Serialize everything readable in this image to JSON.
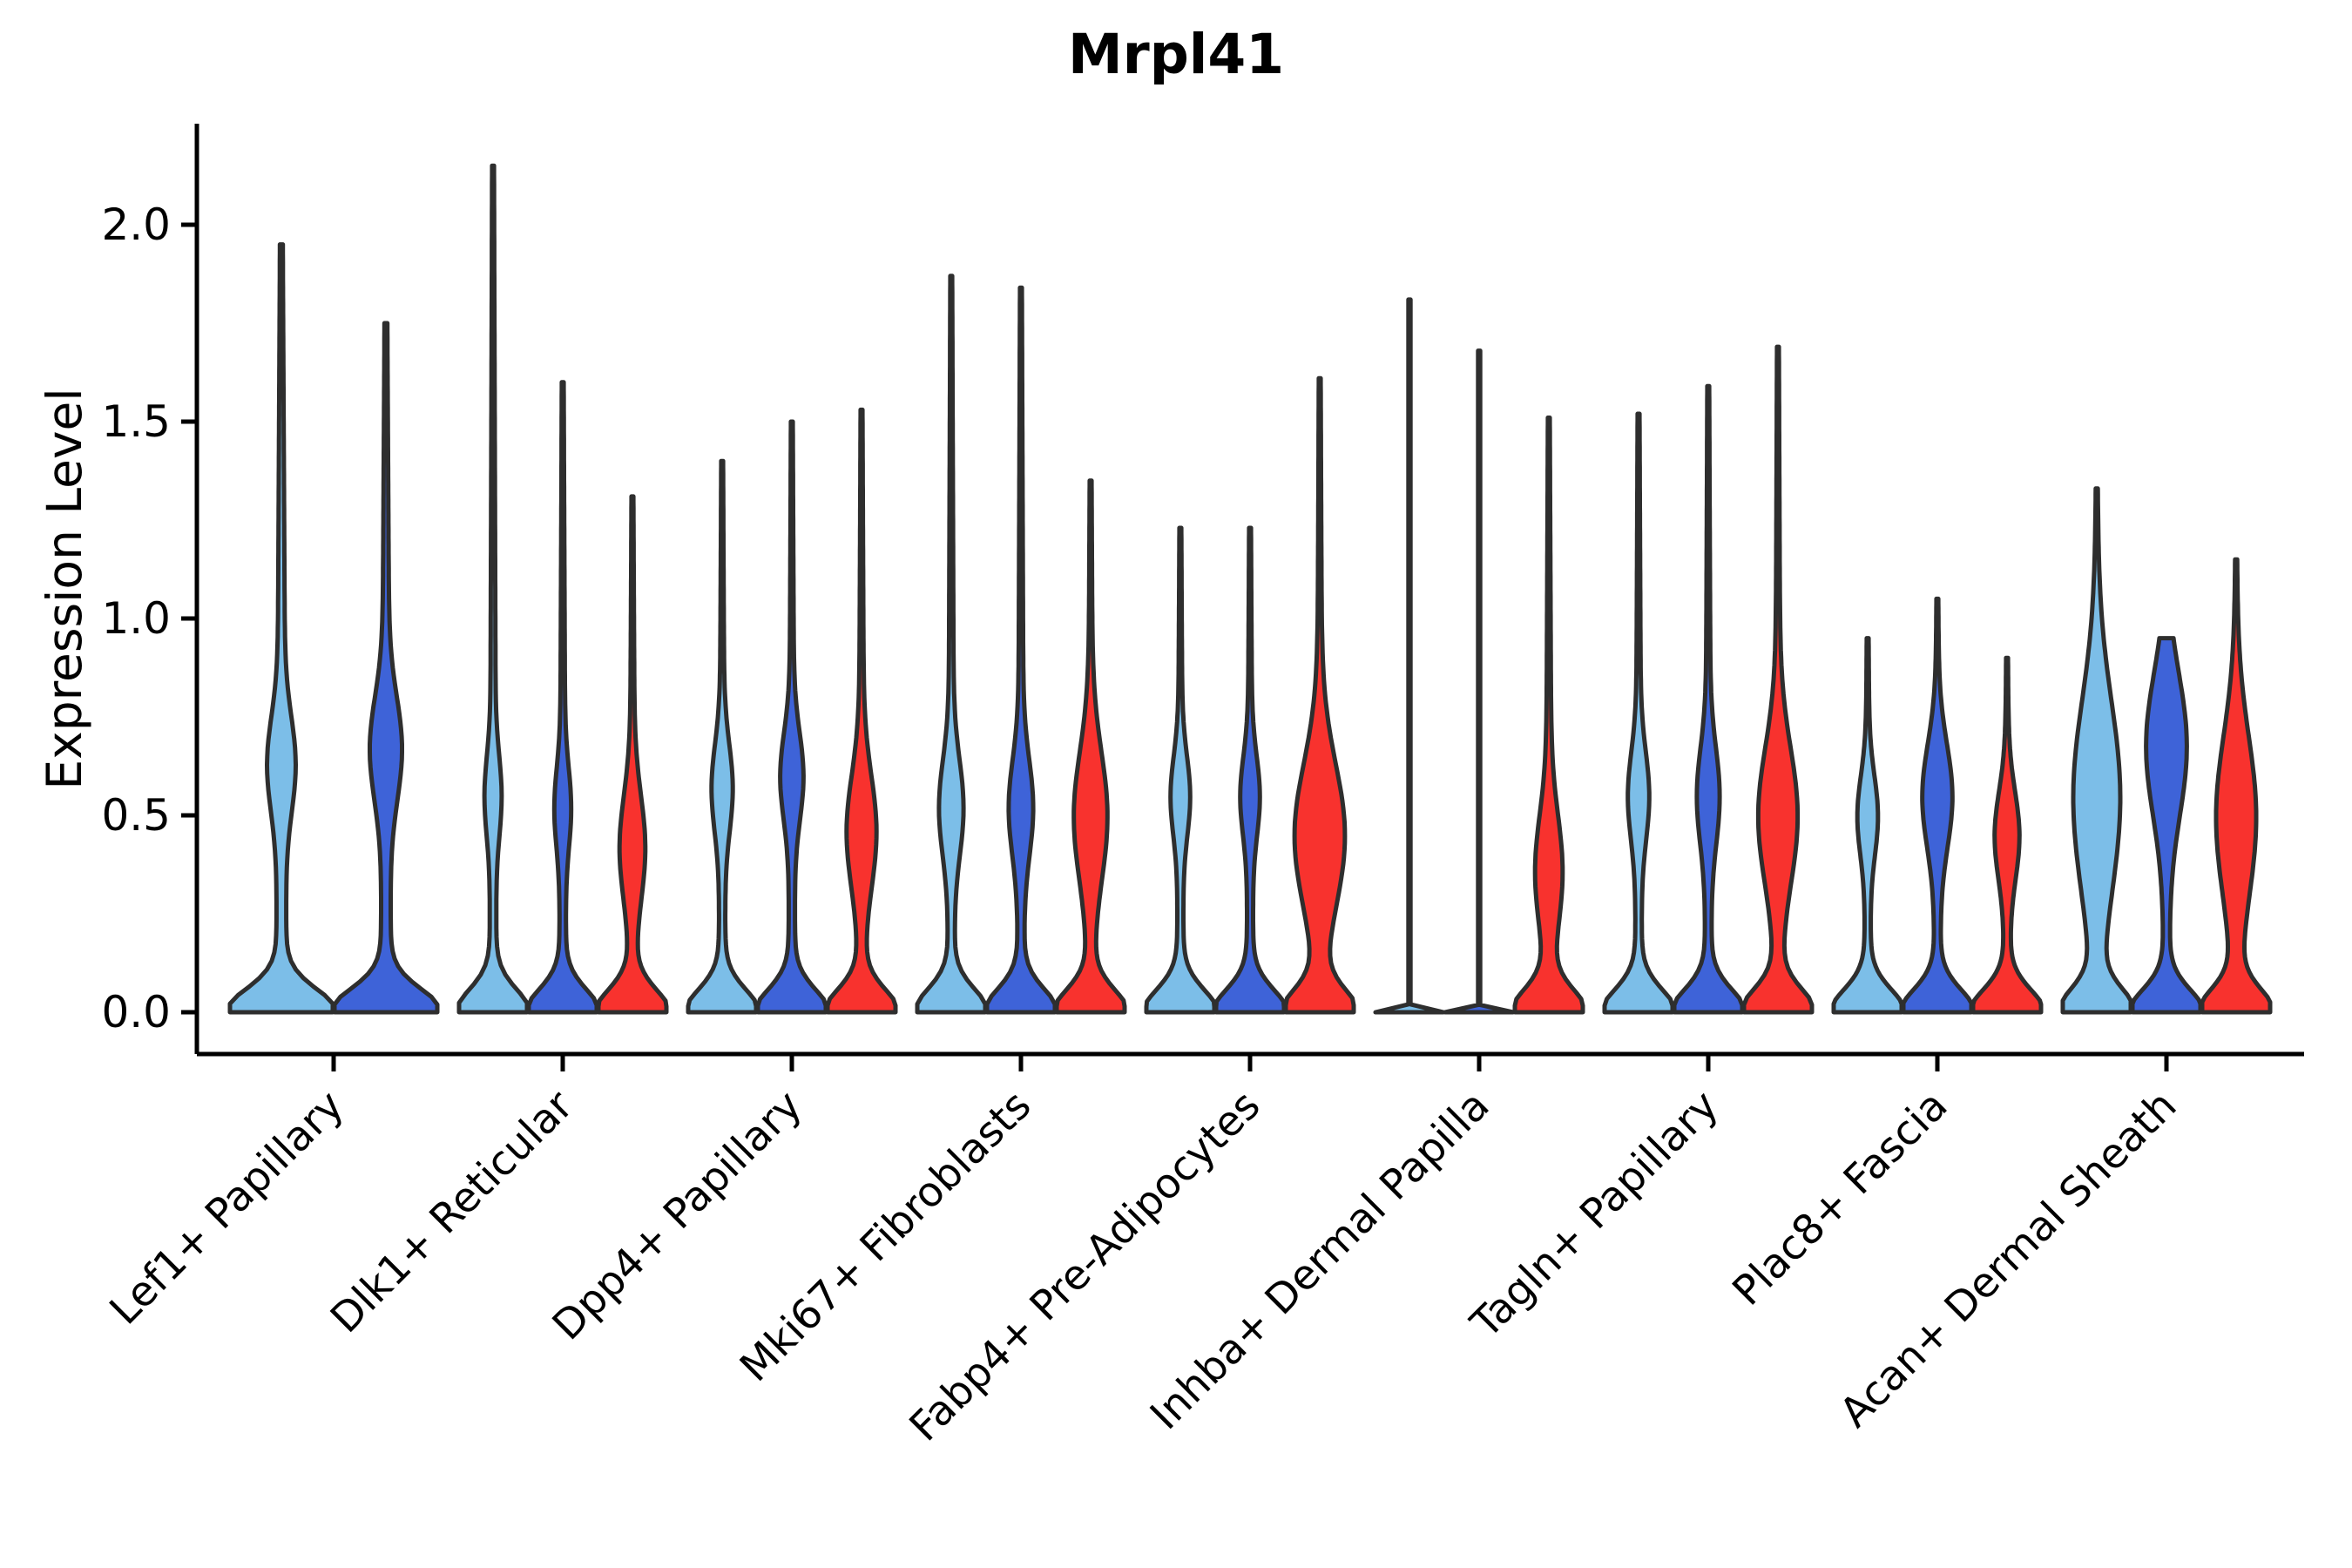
{
  "chart_data": {
    "type": "violin",
    "title": "Mrpl41",
    "ylabel": "Expression Level",
    "xlabel": "",
    "ylim": [
      -0.11,
      2.26
    ],
    "yticks": [
      0.0,
      0.5,
      1.0,
      1.5,
      2.0
    ],
    "ytick_labels": [
      "0.0",
      "0.5",
      "1.0",
      "1.5",
      "2.0"
    ],
    "grid": false,
    "legend": "none",
    "categories": [
      "Lef1+ Papillary",
      "Dlk1+ Reticular",
      "Dpp4+ Papillary",
      "Mki67+ Fibroblasts",
      "Fabp4+ Pre-Adipocytes",
      "Inhba+ Dermal Papilla",
      "Tagln+ Papillary",
      "Plac8+ Fascia",
      "Acan+ Dermal Sheath"
    ],
    "split_colors": {
      "light_blue": "#7CBEE8",
      "dark_blue": "#3E63D8",
      "red": "#F8322E"
    },
    "edge_color": "#2E2E2E",
    "axis_color": "#000000",
    "groups": [
      {
        "category": "Lef1+ Papillary",
        "violins": [
          {
            "split": "light_blue",
            "shape": "kde",
            "max": 1.95,
            "bump_center": 0.63,
            "bump_width": 0.12,
            "bump_amp": 0.2
          },
          {
            "split": "dark_blue",
            "shape": "kde",
            "max": 1.75,
            "bump_center": 0.67,
            "bump_width": 0.13,
            "bump_amp": 0.24
          }
        ]
      },
      {
        "category": "Dlk1+ Reticular",
        "violins": [
          {
            "split": "light_blue",
            "shape": "kde",
            "max": 2.15,
            "bump_center": 0.55,
            "bump_width": 0.1,
            "bump_amp": 0.17
          },
          {
            "split": "dark_blue",
            "shape": "kde",
            "max": 1.6,
            "bump_center": 0.52,
            "bump_width": 0.1,
            "bump_amp": 0.17
          },
          {
            "split": "red",
            "shape": "kde",
            "max": 1.31,
            "bump_center": 0.42,
            "bump_width": 0.13,
            "bump_amp": 0.3
          }
        ]
      },
      {
        "category": "Dpp4+ Papillary",
        "violins": [
          {
            "split": "light_blue",
            "shape": "kde",
            "max": 1.4,
            "bump_center": 0.57,
            "bump_width": 0.11,
            "bump_amp": 0.24
          },
          {
            "split": "dark_blue",
            "shape": "kde",
            "max": 1.5,
            "bump_center": 0.6,
            "bump_width": 0.11,
            "bump_amp": 0.27
          },
          {
            "split": "red",
            "shape": "kde",
            "max": 1.53,
            "bump_center": 0.46,
            "bump_width": 0.14,
            "bump_amp": 0.36
          }
        ]
      },
      {
        "category": "Mki67+ Fibroblasts",
        "violins": [
          {
            "split": "light_blue",
            "shape": "kde",
            "max": 1.87,
            "bump_center": 0.52,
            "bump_width": 0.12,
            "bump_amp": 0.28
          },
          {
            "split": "dark_blue",
            "shape": "kde",
            "max": 1.84,
            "bump_center": 0.52,
            "bump_width": 0.12,
            "bump_amp": 0.28
          },
          {
            "split": "red",
            "shape": "kde",
            "max": 1.35,
            "bump_center": 0.5,
            "bump_width": 0.16,
            "bump_amp": 0.42
          }
        ]
      },
      {
        "category": "Fabp4+ Pre-Adipocytes",
        "violins": [
          {
            "split": "light_blue",
            "shape": "kde",
            "max": 1.23,
            "bump_center": 0.55,
            "bump_width": 0.1,
            "bump_amp": 0.22
          },
          {
            "split": "dark_blue",
            "shape": "kde",
            "max": 1.23,
            "bump_center": 0.55,
            "bump_width": 0.1,
            "bump_amp": 0.22
          },
          {
            "split": "red",
            "shape": "kde",
            "max": 1.61,
            "bump_center": 0.45,
            "bump_width": 0.18,
            "bump_amp": 0.66
          }
        ]
      },
      {
        "category": "Inhba+ Dermal Papilla",
        "violins": [
          {
            "split": "light_blue",
            "shape": "line",
            "max": 1.81
          },
          {
            "split": "dark_blue",
            "shape": "line",
            "max": 1.68
          },
          {
            "split": "red",
            "shape": "kde",
            "max": 1.51,
            "bump_center": 0.36,
            "bump_width": 0.14,
            "bump_amp": 0.32
          }
        ]
      },
      {
        "category": "Tagln+ Papillary",
        "violins": [
          {
            "split": "light_blue",
            "shape": "kde",
            "max": 1.52,
            "bump_center": 0.55,
            "bump_width": 0.11,
            "bump_amp": 0.24
          },
          {
            "split": "dark_blue",
            "shape": "kde",
            "max": 1.59,
            "bump_center": 0.55,
            "bump_width": 0.12,
            "bump_amp": 0.26
          },
          {
            "split": "red",
            "shape": "kde",
            "max": 1.69,
            "bump_center": 0.5,
            "bump_width": 0.17,
            "bump_amp": 0.5
          }
        ]
      },
      {
        "category": "Plac8+ Fascia",
        "violins": [
          {
            "split": "light_blue",
            "shape": "kde",
            "max": 0.95,
            "bump_center": 0.5,
            "bump_width": 0.1,
            "bump_amp": 0.24
          },
          {
            "split": "dark_blue",
            "shape": "kde",
            "max": 1.05,
            "bump_center": 0.55,
            "bump_width": 0.13,
            "bump_amp": 0.38
          },
          {
            "split": "red",
            "shape": "kde",
            "max": 0.9,
            "bump_center": 0.45,
            "bump_width": 0.11,
            "bump_amp": 0.3
          }
        ]
      },
      {
        "category": "Acan+ Dermal Sheath",
        "violins": [
          {
            "split": "light_blue",
            "shape": "kde",
            "max": 1.33,
            "bump_center": 0.55,
            "bump_width": 0.24,
            "bump_amp": 0.62
          },
          {
            "split": "dark_blue",
            "shape": "kde",
            "max": 0.95,
            "bump_center": 0.68,
            "bump_width": 0.18,
            "bump_amp": 0.55
          },
          {
            "split": "red",
            "shape": "kde",
            "max": 1.15,
            "bump_center": 0.5,
            "bump_width": 0.2,
            "bump_amp": 0.52
          }
        ]
      }
    ]
  }
}
